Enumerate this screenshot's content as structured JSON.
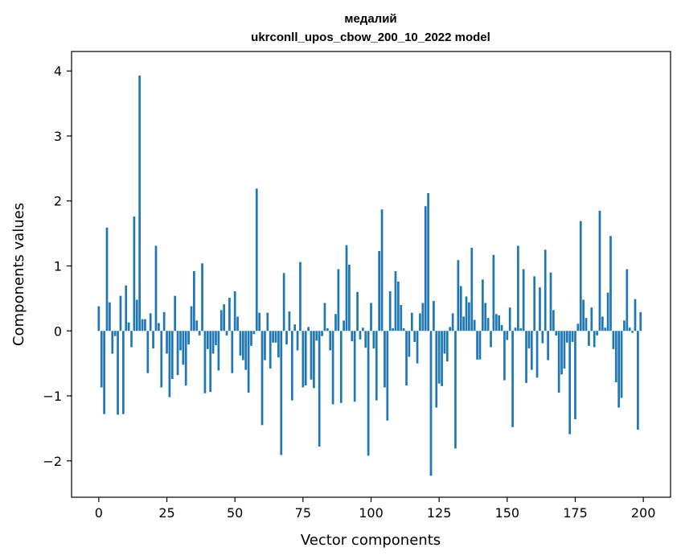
{
  "chart_data": {
    "type": "bar",
    "title": "медалий",
    "subtitle": "ukrconll_upos_cbow_200_10_2022 model",
    "xlabel": "Vector components",
    "ylabel": "Components values",
    "xlim": [
      -10,
      210
    ],
    "ylim": [
      -2.56,
      4.3
    ],
    "xticks": [
      0,
      25,
      50,
      75,
      100,
      125,
      150,
      175,
      200
    ],
    "yticks": [
      -2,
      -1,
      0,
      1,
      2,
      3,
      4
    ],
    "ytick_labels": [
      "−2",
      "−1",
      "0",
      "1",
      "2",
      "3",
      "4"
    ],
    "bar_color": "#1f77b4",
    "grid": false,
    "legend": "none",
    "values": [
      0.38,
      -0.87,
      -1.28,
      1.59,
      0.44,
      -0.35,
      -0.08,
      -1.29,
      0.54,
      -1.28,
      0.7,
      0.13,
      -0.25,
      1.76,
      0.48,
      3.93,
      0.18,
      0.18,
      -0.65,
      0.27,
      -0.27,
      1.31,
      0.12,
      -0.87,
      0.29,
      -0.35,
      -1.02,
      -0.74,
      0.54,
      -0.68,
      -0.3,
      -0.52,
      -0.84,
      -0.21,
      0.38,
      0.92,
      0.16,
      -0.07,
      1.04,
      -0.96,
      -0.28,
      -0.94,
      -0.35,
      -0.22,
      -0.61,
      0.32,
      0.41,
      -0.07,
      0.51,
      -0.65,
      0.61,
      0.22,
      -0.38,
      -0.45,
      -0.6,
      -0.95,
      -0.23,
      -0.05,
      2.19,
      0.28,
      -1.45,
      -0.45,
      0.28,
      -0.58,
      -0.18,
      -0.18,
      -0.41,
      -1.91,
      0.89,
      -0.21,
      0.3,
      -1.07,
      0.1,
      -0.3,
      1.06,
      -0.87,
      -0.84,
      0.06,
      -0.75,
      -0.88,
      -0.15,
      -1.78,
      -0.08,
      0.43,
      0.04,
      -0.3,
      -1.13,
      0.26,
      0.95,
      -1.11,
      0.16,
      1.32,
      1.02,
      -0.16,
      -1.09,
      0.6,
      -0.13,
      0.05,
      -0.26,
      -1.92,
      0.43,
      -0.27,
      -1.07,
      1.23,
      1.87,
      -0.87,
      -1.38,
      0.61,
      0.04,
      0.92,
      0.76,
      0.4,
      0.04,
      -0.84,
      -0.4,
      0.28,
      -0.17,
      -0.5,
      0.27,
      0.43,
      1.92,
      2.12,
      -2.23,
      0.46,
      -1.18,
      -0.81,
      -0.85,
      -0.35,
      -0.47,
      0.06,
      0.27,
      -1.81,
      1.09,
      0.69,
      0.22,
      0.53,
      0.44,
      1.28,
      0.17,
      -0.44,
      -0.44,
      0.79,
      0.43,
      0.2,
      -0.25,
      1.17,
      0.26,
      0.24,
      0.09,
      -0.76,
      -0.14,
      0.36,
      -1.48,
      0.05,
      1.31,
      0.04,
      0.95,
      -0.8,
      -0.27,
      -0.6,
      0.84,
      -0.72,
      0.67,
      -0.19,
      1.25,
      -0.45,
      0.9,
      0.32,
      -0.07,
      -0.95,
      -0.67,
      -0.58,
      -0.18,
      -1.59,
      -0.17,
      -1.36,
      0.11,
      1.69,
      0.48,
      0.2,
      -0.23,
      0.36,
      -0.25,
      -0.07,
      1.85,
      0.22,
      0.05,
      0.59,
      1.46,
      -0.28,
      -0.79,
      -1.18,
      -1.03,
      0.16,
      0.95,
      0.05,
      -0.03,
      0.49,
      -1.52,
      0.29
    ]
  }
}
